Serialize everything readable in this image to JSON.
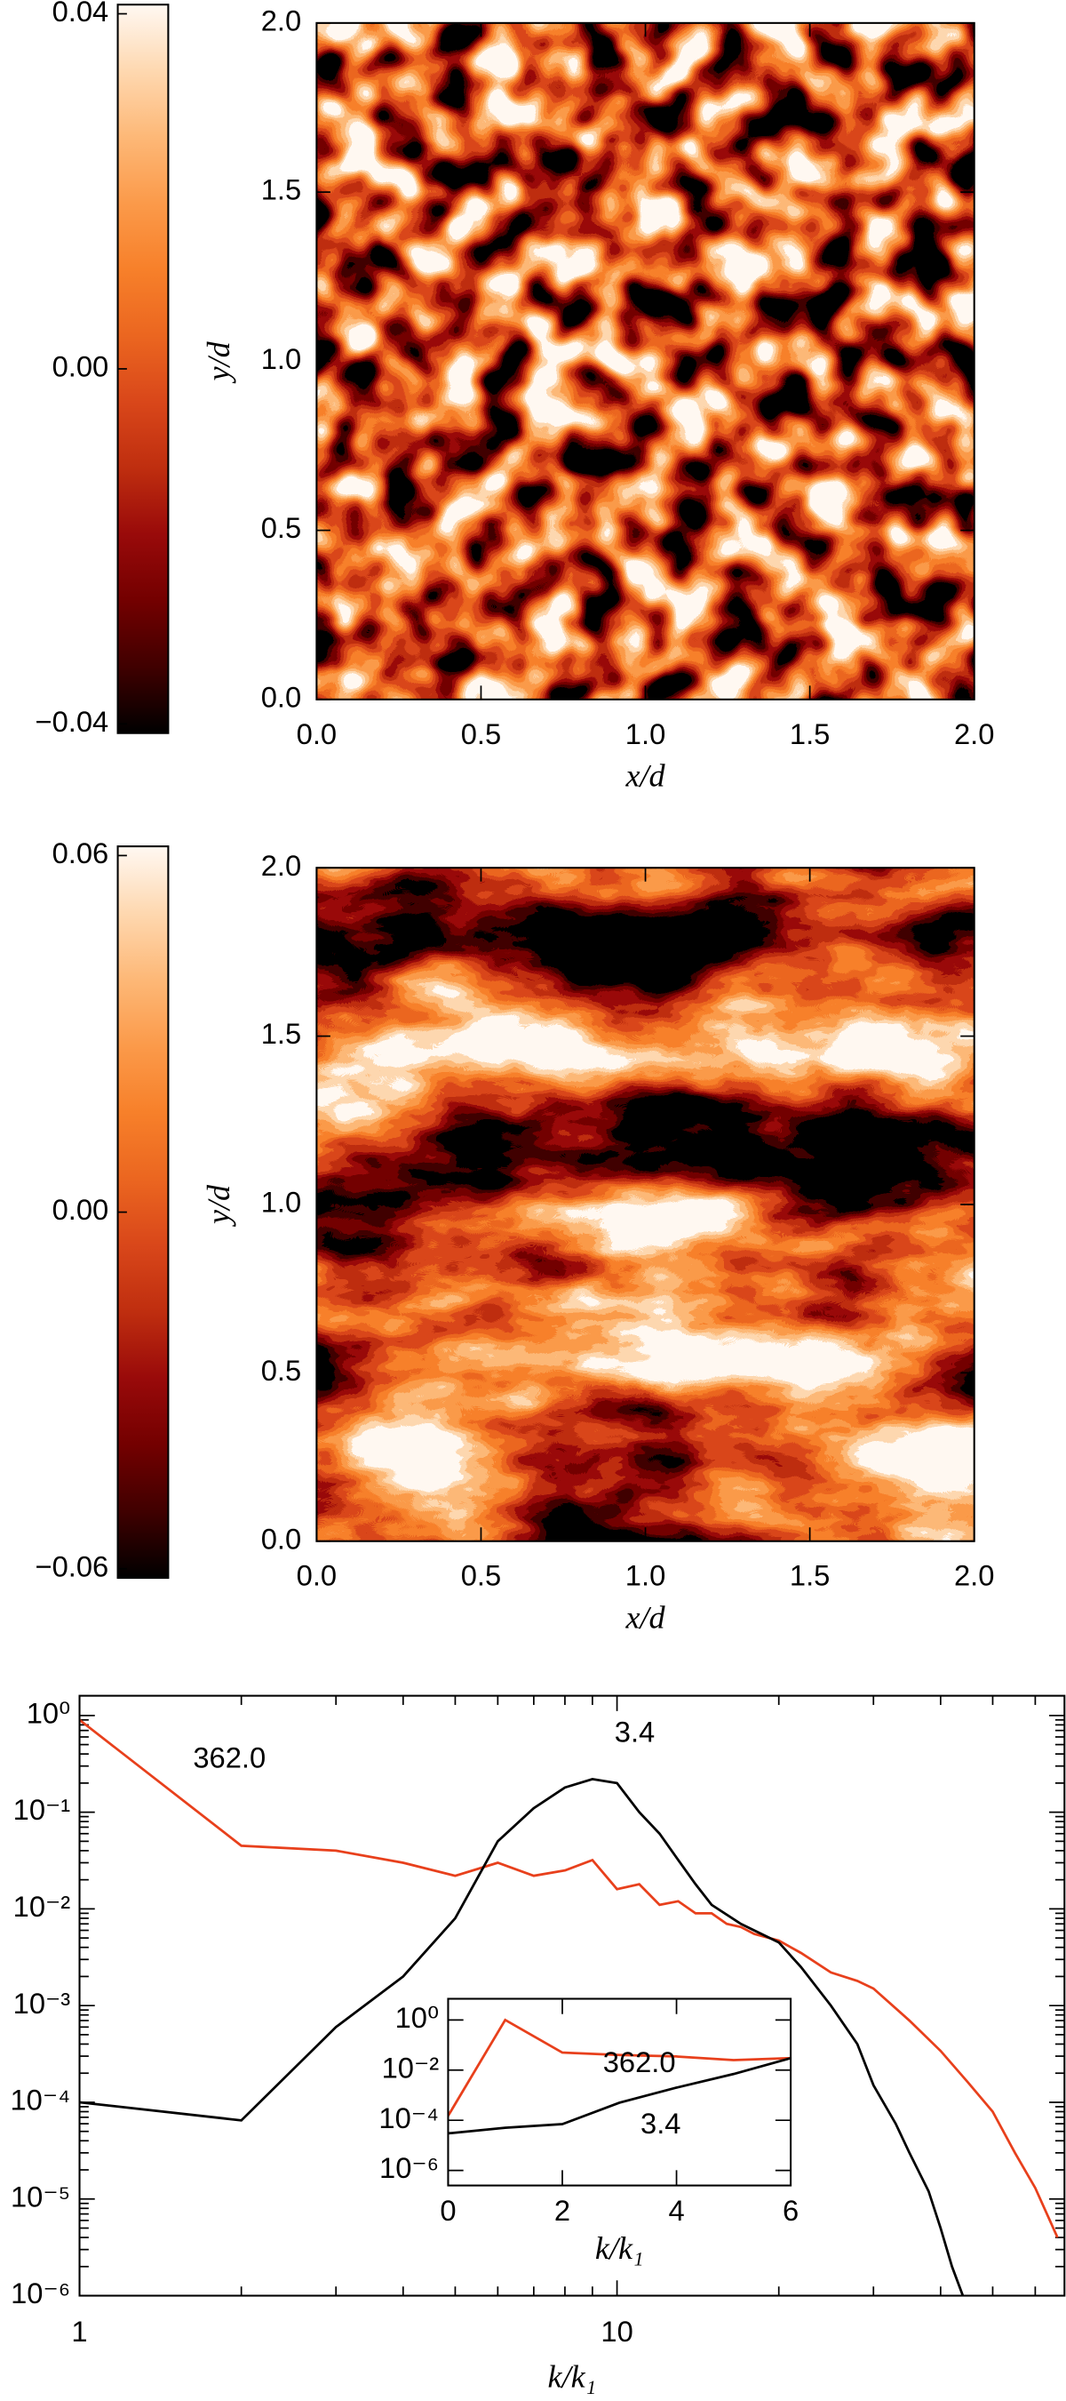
{
  "chart_data": [
    {
      "type": "heatmap",
      "xlabel": "x/d",
      "ylabel": "y/d",
      "xlim": [
        0,
        2
      ],
      "ylim": [
        0,
        2
      ],
      "xticks": [
        {
          "value": 0,
          "label": "0.0"
        },
        0.5,
        {
          "value": 1,
          "label": "1.0"
        },
        1.5,
        {
          "value": 2,
          "label": "2.0"
        }
      ],
      "yticks": [
        {
          "value": 0,
          "label": "0.0"
        },
        0.5,
        {
          "value": 1,
          "label": "1.0"
        },
        1.5,
        {
          "value": 2,
          "label": "2.0"
        }
      ],
      "clim": [
        -0.04,
        0.04
      ],
      "cticks": [
        0.04,
        {
          "value": 0,
          "label": "0.00"
        },
        {
          "value": -0.04,
          "label": "−0.04"
        }
      ],
      "colormap": [
        "#000000",
        "#400000",
        "#730000",
        "#990a0a",
        "#bf2e0f",
        "#d9471a",
        "#eb6620",
        "#f7802a",
        "#fb9a4a",
        "#fdb877",
        "#fed8b0",
        "#fff8f2"
      ]
    },
    {
      "type": "heatmap",
      "xlabel": "x/d",
      "ylabel": "y/d",
      "xlim": [
        0,
        2
      ],
      "ylim": [
        0,
        2
      ],
      "xticks": [
        {
          "value": 0,
          "label": "0.0"
        },
        0.5,
        {
          "value": 1,
          "label": "1.0"
        },
        1.5,
        {
          "value": 2,
          "label": "2.0"
        }
      ],
      "yticks": [
        {
          "value": 0,
          "label": "0.0"
        },
        0.5,
        {
          "value": 1,
          "label": "1.0"
        },
        1.5,
        {
          "value": 2,
          "label": "2.0"
        }
      ],
      "clim": [
        -0.06,
        0.06
      ],
      "cticks": [
        0.06,
        {
          "value": 0,
          "label": "0.00"
        },
        {
          "value": -0.06,
          "label": "−0.06"
        }
      ],
      "colormap": [
        "#000000",
        "#400000",
        "#730000",
        "#990a0a",
        "#bf2e0f",
        "#d9471a",
        "#eb6620",
        "#f7802a",
        "#fb9a4a",
        "#fdb877",
        "#fed8b0",
        "#fff8f2"
      ]
    },
    {
      "type": "line",
      "xlabel": "k/k₁",
      "xscale": "log",
      "yscale": "log",
      "xlim": [
        1,
        68
      ],
      "ylim": [
        1e-06,
        1.6
      ],
      "xticks": [
        1,
        10
      ],
      "yticks": [
        {
          "value": 1,
          "label": "10⁰"
        },
        {
          "value": 0.1,
          "label": "10⁻¹"
        },
        {
          "value": 0.01,
          "label": "10⁻²"
        },
        {
          "value": 0.001,
          "label": "10⁻³"
        },
        {
          "value": 0.0001,
          "label": "10⁻⁴"
        },
        {
          "value": 1e-05,
          "label": "10⁻⁵"
        },
        {
          "value": 1e-06,
          "label": "10⁻⁶"
        }
      ],
      "series": [
        {
          "name": "362.0",
          "color": "#e8401c",
          "x": [
            1,
            2,
            3,
            4,
            5,
            6,
            7,
            8,
            9,
            10,
            11,
            12,
            13,
            14,
            15,
            16,
            17,
            18,
            20,
            22,
            25,
            28,
            30,
            35,
            40,
            45,
            50,
            55,
            60,
            66
          ],
          "values": [
            0.9,
            0.045,
            0.04,
            0.03,
            0.022,
            0.03,
            0.022,
            0.025,
            0.032,
            0.016,
            0.018,
            0.011,
            0.012,
            0.009,
            0.009,
            0.007,
            0.0065,
            0.0055,
            0.0047,
            0.0035,
            0.0022,
            0.0018,
            0.0015,
            0.0007,
            0.00034,
            0.00016,
            8e-05,
            3e-05,
            1.3e-05,
            4e-06
          ]
        },
        {
          "name": "3.4",
          "color": "#000000",
          "x": [
            1,
            2,
            3,
            4,
            5,
            6,
            7,
            8,
            9,
            10,
            11,
            12,
            13,
            14,
            15,
            17,
            20,
            22,
            25,
            28,
            30,
            33,
            35,
            38,
            40,
            42,
            44
          ],
          "values": [
            0.0001,
            6.5e-05,
            0.0006,
            0.002,
            0.008,
            0.05,
            0.11,
            0.18,
            0.22,
            0.2,
            0.1,
            0.06,
            0.032,
            0.018,
            0.011,
            0.007,
            0.0045,
            0.0025,
            0.001,
            0.0004,
            0.00015,
            6e-05,
            3e-05,
            1.2e-05,
            5e-06,
            2e-06,
            1e-06
          ]
        }
      ]
    },
    {
      "type": "line",
      "xlabel": "k/k₁",
      "xscale": "linear",
      "yscale": "log",
      "xlim": [
        0,
        6
      ],
      "ylim": [
        2.5e-07,
        7
      ],
      "xticks": [
        0,
        2,
        4,
        6
      ],
      "yticks": [
        {
          "value": 1,
          "label": "10⁰"
        },
        {
          "value": 0.01,
          "label": "10⁻²"
        },
        {
          "value": 0.0001,
          "label": "10⁻⁴"
        },
        {
          "value": 1e-06,
          "label": "10⁻⁶"
        }
      ],
      "series": [
        {
          "name": "362.0",
          "color": "#e8401c",
          "x": [
            0,
            1,
            2,
            3,
            4,
            5,
            6
          ],
          "values": [
            0.00015,
            1,
            0.05,
            0.04,
            0.035,
            0.025,
            0.03
          ]
        },
        {
          "name": "3.4",
          "color": "#000000",
          "x": [
            0,
            1,
            2,
            3,
            4,
            5,
            6
          ],
          "values": [
            3e-05,
            5e-05,
            7e-05,
            0.0005,
            0.002,
            0.007,
            0.03
          ]
        }
      ]
    }
  ]
}
